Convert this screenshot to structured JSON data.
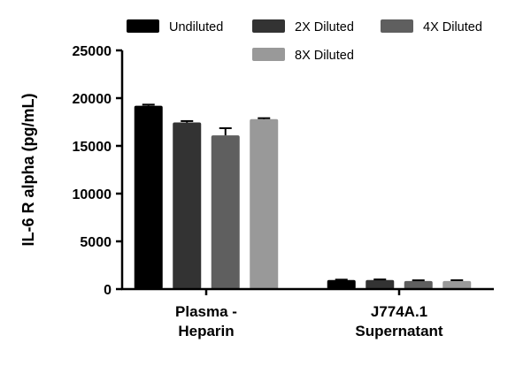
{
  "chart_data": {
    "type": "bar",
    "title": "",
    "xlabel": "",
    "ylabel": "IL-6 R alpha (pg/mL)",
    "ylim": [
      0,
      25000
    ],
    "yticks": [
      "0",
      "5000",
      "10000",
      "15000",
      "20000",
      "25000"
    ],
    "categories": [
      {
        "lines": [
          "Plasma -",
          "Heparin"
        ]
      },
      {
        "lines": [
          "J774A.1",
          "Supernatant"
        ]
      }
    ],
    "series": [
      {
        "name": "Undiluted",
        "color": "#000000",
        "values": [
          19200,
          950
        ],
        "errors": [
          120,
          40
        ]
      },
      {
        "name": "2X Diluted",
        "color": "#333333",
        "values": [
          17450,
          950
        ],
        "errors": [
          150,
          60
        ]
      },
      {
        "name": "4X Diluted",
        "color": "#5f5f5f",
        "values": [
          16100,
          850
        ],
        "errors": [
          750,
          70
        ]
      },
      {
        "name": "8X Diluted",
        "color": "#999999",
        "values": [
          17800,
          850
        ],
        "errors": [
          100,
          80
        ]
      }
    ],
    "legend_position": "top"
  }
}
